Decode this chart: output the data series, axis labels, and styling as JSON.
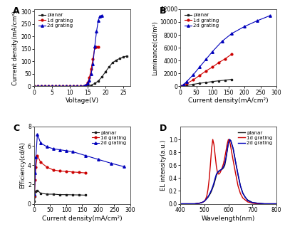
{
  "A": {
    "planar_x": [
      0,
      1,
      2,
      3,
      4,
      5,
      6,
      7,
      8,
      9,
      10,
      11,
      12,
      13,
      14,
      15,
      16,
      17,
      18,
      19,
      20,
      21,
      22,
      23,
      24,
      25,
      26
    ],
    "planar_y": [
      0,
      0,
      0,
      0,
      0,
      0,
      0,
      0,
      0,
      0,
      0,
      0,
      0,
      0,
      0,
      2,
      5,
      12,
      22,
      38,
      58,
      78,
      95,
      105,
      112,
      118,
      122
    ],
    "grating1d_x": [
      0,
      1,
      2,
      3,
      4,
      5,
      6,
      7,
      8,
      9,
      10,
      11,
      12,
      13,
      14,
      14.5,
      15,
      15.5,
      16,
      16.5,
      17,
      17.5,
      18
    ],
    "grating1d_y": [
      0,
      0,
      0,
      0,
      0,
      0,
      0,
      0,
      0,
      0,
      0,
      0,
      0,
      0,
      2,
      5,
      15,
      35,
      70,
      110,
      155,
      158,
      158
    ],
    "grating2d_x": [
      0,
      1,
      2,
      3,
      4,
      5,
      6,
      7,
      8,
      9,
      10,
      11,
      12,
      13,
      14,
      14.5,
      15,
      15.5,
      16,
      16.5,
      17,
      17.5,
      18,
      18.5,
      19
    ],
    "grating2d_y": [
      0,
      0,
      0,
      0,
      0,
      0,
      0,
      0,
      0,
      0,
      0,
      0,
      0,
      0,
      2,
      5,
      12,
      25,
      50,
      90,
      160,
      220,
      265,
      282,
      285
    ],
    "xlabel": "Voltage(V)",
    "ylabel": "Current density(mA/cm²)",
    "xlim": [
      0,
      27
    ],
    "ylim": [
      0,
      310
    ],
    "xticks": [
      0,
      5,
      10,
      15,
      20,
      25
    ],
    "yticks": [
      0,
      50,
      100,
      150,
      200,
      250,
      300
    ]
  },
  "B": {
    "planar_x": [
      0,
      5,
      10,
      20,
      40,
      60,
      80,
      100,
      120,
      140,
      160
    ],
    "planar_y": [
      0,
      25,
      60,
      150,
      320,
      480,
      620,
      750,
      870,
      980,
      1100
    ],
    "grating1d_x": [
      0,
      5,
      10,
      20,
      40,
      60,
      80,
      100,
      120,
      140,
      160
    ],
    "grating1d_y": [
      0,
      60,
      180,
      450,
      1000,
      1700,
      2400,
      3000,
      3700,
      4300,
      5000
    ],
    "grating2d_x": [
      0,
      10,
      20,
      40,
      60,
      80,
      100,
      130,
      160,
      200,
      240,
      280
    ],
    "grating2d_y": [
      0,
      300,
      750,
      1800,
      3000,
      4200,
      5400,
      7000,
      8200,
      9300,
      10200,
      11000
    ],
    "xlabel": "Current density(mA/cm²)",
    "ylabel": "Luminance(cd/m²)",
    "xlim": [
      0,
      300
    ],
    "ylim": [
      0,
      12000
    ],
    "xticks": [
      0,
      50,
      100,
      150,
      200,
      250,
      300
    ],
    "yticks": [
      0,
      2000,
      4000,
      6000,
      8000,
      10000,
      12000
    ]
  },
  "C": {
    "planar_x": [
      1,
      3,
      5,
      10,
      20,
      40,
      60,
      80,
      100,
      120,
      140,
      160
    ],
    "planar_y": [
      0.25,
      0.8,
      1.3,
      1.4,
      1.1,
      1.0,
      1.0,
      0.95,
      0.95,
      0.93,
      0.92,
      0.9
    ],
    "grating1d_x": [
      1,
      3,
      5,
      10,
      20,
      40,
      60,
      80,
      100,
      120,
      140,
      160
    ],
    "grating1d_y": [
      0.8,
      2.5,
      3.8,
      5.0,
      4.3,
      3.8,
      3.5,
      3.4,
      3.35,
      3.3,
      3.25,
      3.2
    ],
    "grating2d_x": [
      1,
      3,
      5,
      10,
      20,
      40,
      60,
      80,
      100,
      120,
      160,
      200,
      240,
      280
    ],
    "grating2d_y": [
      1.0,
      3.2,
      4.8,
      7.2,
      6.3,
      5.9,
      5.7,
      5.6,
      5.5,
      5.4,
      5.0,
      4.6,
      4.2,
      3.85
    ],
    "xlabel": "Current density(mA/cm²)",
    "ylabel": "Efficiency(cd/A)",
    "xlim": [
      0,
      300
    ],
    "ylim": [
      0,
      8
    ],
    "xticks": [
      0,
      50,
      100,
      150,
      200,
      250,
      300
    ],
    "yticks": [
      0,
      2,
      4,
      6,
      8
    ]
  },
  "D": {
    "planar_x": [
      400,
      420,
      440,
      460,
      480,
      490,
      500,
      510,
      515,
      520,
      525,
      530,
      535,
      540,
      545,
      550,
      555,
      560,
      565,
      570,
      575,
      580,
      585,
      590,
      595,
      600,
      605,
      610,
      620,
      630,
      640,
      650,
      660,
      670,
      680,
      700,
      720,
      750,
      800
    ],
    "planar_y": [
      0.0,
      0.0,
      0.0,
      0.0,
      0.01,
      0.02,
      0.04,
      0.08,
      0.1,
      0.13,
      0.16,
      0.2,
      0.25,
      0.3,
      0.37,
      0.44,
      0.48,
      0.5,
      0.52,
      0.53,
      0.54,
      0.56,
      0.6,
      0.7,
      0.82,
      0.95,
      1.0,
      0.98,
      0.85,
      0.65,
      0.45,
      0.28,
      0.17,
      0.1,
      0.06,
      0.02,
      0.01,
      0.0,
      0.0
    ],
    "grating1d_x": [
      400,
      420,
      440,
      460,
      480,
      490,
      500,
      505,
      510,
      515,
      520,
      525,
      530,
      535,
      540,
      545,
      550,
      555,
      560,
      565,
      570,
      575,
      580,
      585,
      590,
      595,
      600,
      605,
      610,
      620,
      630,
      640,
      650,
      660,
      680,
      700,
      720,
      750,
      800
    ],
    "grating1d_y": [
      0.0,
      0.0,
      0.0,
      0.0,
      0.01,
      0.02,
      0.04,
      0.07,
      0.12,
      0.22,
      0.38,
      0.6,
      0.85,
      1.0,
      0.92,
      0.75,
      0.58,
      0.48,
      0.46,
      0.48,
      0.52,
      0.57,
      0.63,
      0.72,
      0.82,
      0.93,
      1.0,
      0.98,
      0.88,
      0.67,
      0.47,
      0.28,
      0.16,
      0.09,
      0.03,
      0.01,
      0.0,
      0.0,
      0.0
    ],
    "grating2d_x": [
      400,
      420,
      440,
      460,
      480,
      490,
      500,
      510,
      515,
      520,
      525,
      530,
      535,
      540,
      545,
      550,
      555,
      560,
      565,
      570,
      575,
      580,
      585,
      590,
      595,
      600,
      605,
      610,
      620,
      630,
      640,
      650,
      660,
      680,
      700,
      720,
      750,
      800
    ],
    "grating2d_y": [
      0.0,
      0.0,
      0.0,
      0.0,
      0.01,
      0.02,
      0.04,
      0.08,
      0.11,
      0.14,
      0.18,
      0.22,
      0.27,
      0.33,
      0.4,
      0.46,
      0.49,
      0.51,
      0.52,
      0.53,
      0.55,
      0.58,
      0.63,
      0.72,
      0.83,
      0.94,
      1.0,
      0.98,
      0.86,
      0.65,
      0.46,
      0.28,
      0.16,
      0.05,
      0.02,
      0.01,
      0.0,
      0.0
    ],
    "xlabel": "Wavelength(nm)",
    "ylabel": "EL intensity(a.u.)",
    "xlim": [
      400,
      800
    ],
    "ylim": [
      0,
      1.2
    ],
    "xticks": [
      400,
      500,
      600,
      700,
      800
    ],
    "yticks": [
      0.0,
      0.2,
      0.4,
      0.6,
      0.8,
      1.0
    ]
  },
  "colors": {
    "planar": "#1a1a1a",
    "grating1d": "#cc0000",
    "grating2d": "#0000bb"
  },
  "legend_labels": [
    "planar",
    "1d grating",
    "2d grating"
  ],
  "bg_color": "#ffffff"
}
